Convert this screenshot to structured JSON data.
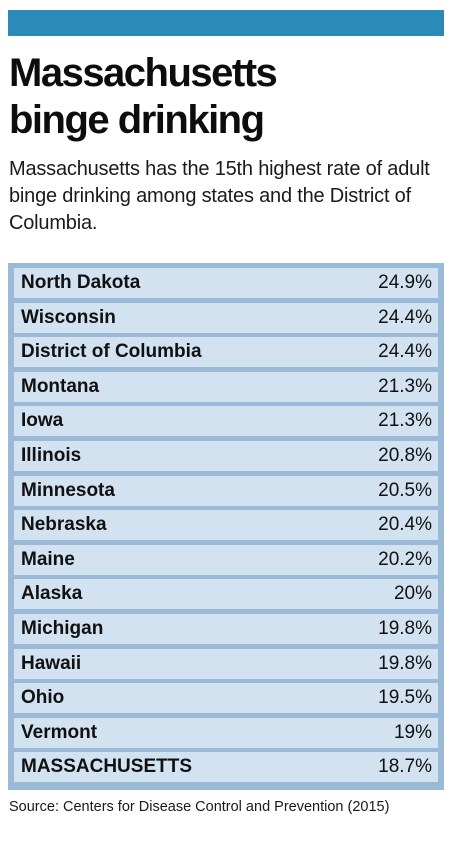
{
  "header": {
    "accent_color": "#2b8ab8",
    "title": "Massachusetts\nbinge drinking",
    "subtitle": "Massachusetts has the 15th highest rate of adult binge drinking among states and the District of Columbia."
  },
  "chart_data": {
    "type": "table",
    "title": "Massachusetts binge drinking",
    "subtitle": "Massachusetts has the 15th highest rate of adult binge drinking among states and the District of Columbia.",
    "rows": [
      {
        "state": "North Dakota",
        "value": "24.9%"
      },
      {
        "state": "Wisconsin",
        "value": "24.4%"
      },
      {
        "state": "District of Columbia",
        "value": "24.4%"
      },
      {
        "state": "Montana",
        "value": "21.3%"
      },
      {
        "state": "Iowa",
        "value": "21.3%"
      },
      {
        "state": "Illinois",
        "value": "20.8%"
      },
      {
        "state": "Minnesota",
        "value": "20.5%"
      },
      {
        "state": "Nebraska",
        "value": "20.4%"
      },
      {
        "state": "Maine",
        "value": "20.2%"
      },
      {
        "state": "Alaska",
        "value": "20%"
      },
      {
        "state": "Michigan",
        "value": "19.8%"
      },
      {
        "state": "Hawaii",
        "value": "19.8%"
      },
      {
        "state": "Ohio",
        "value": "19.5%"
      },
      {
        "state": "Vermont",
        "value": "19%"
      },
      {
        "state": "MASSACHUSETTS",
        "value": "18.7%"
      }
    ],
    "row_color": "#d2e2f1",
    "border_color": "#9bbad7"
  },
  "footer": {
    "source": "Source: Centers for Disease Control and Prevention (2015)"
  }
}
